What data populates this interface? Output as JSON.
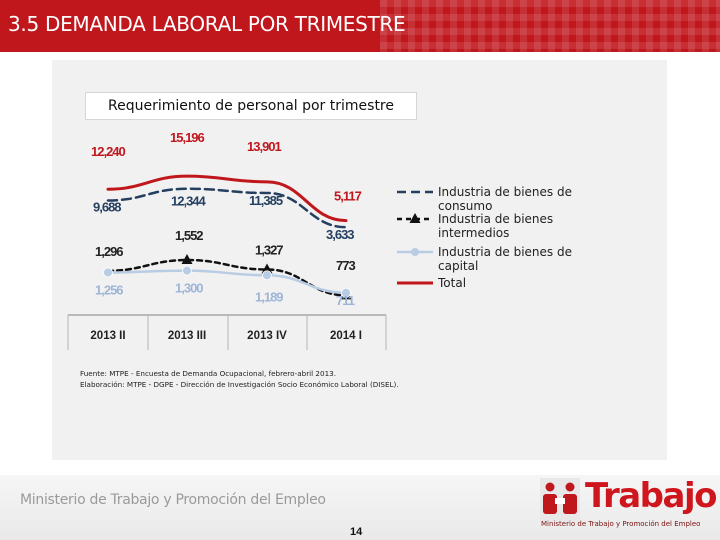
{
  "header": {
    "title": "3.5 DEMANDA LABORAL POR TRIMESTRE"
  },
  "chart_data": {
    "type": "line",
    "title": "Requerimiento de personal por trimestre",
    "categories": [
      "2013 II",
      "2013 III",
      "2013 IV",
      "2014 I"
    ],
    "series": [
      {
        "name": "Industria de bienes de consumo",
        "values": [
          9688,
          12344,
          11385,
          3633
        ],
        "labels": [
          "9,688",
          "12,344",
          "11,385",
          "3,633"
        ],
        "color": "#243f60",
        "style": "dashed"
      },
      {
        "name": "Industria de bienes intermedios",
        "values": [
          1296,
          1552,
          1327,
          711
        ],
        "labels": [
          "1,296",
          "1,552",
          "1,327",
          "711"
        ],
        "color": "#111111",
        "style": "dashed-triangle"
      },
      {
        "name": "Industria de bienes de capital",
        "values": [
          1256,
          1300,
          1189,
          773
        ],
        "labels": [
          "1,256",
          "1,300",
          "1,189",
          "773"
        ],
        "color": "#b8cce4",
        "style": "solid-circle"
      },
      {
        "name": "Total",
        "values": [
          12240,
          15196,
          13901,
          5117
        ],
        "labels": [
          "12,240",
          "15,196",
          "13,901",
          "5,117"
        ],
        "color": "#c0171d",
        "style": "solid"
      }
    ],
    "legend": [
      {
        "line1": "Industria de bienes de",
        "line2": "consumo"
      },
      {
        "line1": "Industria de bienes",
        "line2": "intermedios"
      },
      {
        "line1": "Industria de bienes de",
        "line2": "capital"
      },
      {
        "line1": "Total",
        "line2": ""
      }
    ],
    "legend_position": "right",
    "grid": false
  },
  "source": {
    "line1": "Fuente: MTPE - Encuesta de Demanda Ocupacional, febrero-abril 2013.",
    "line2": "Elaboración: MTPE - DGPE - Dirección de Investigación Socio Económico Laboral (DISEL)."
  },
  "footer": {
    "ministry": "Ministerio de Trabajo y Promoción del Empleo",
    "brand": "Trabajo",
    "brand_sub": "Ministerio de Trabajo y Promoción del Empleo",
    "page": "14"
  }
}
